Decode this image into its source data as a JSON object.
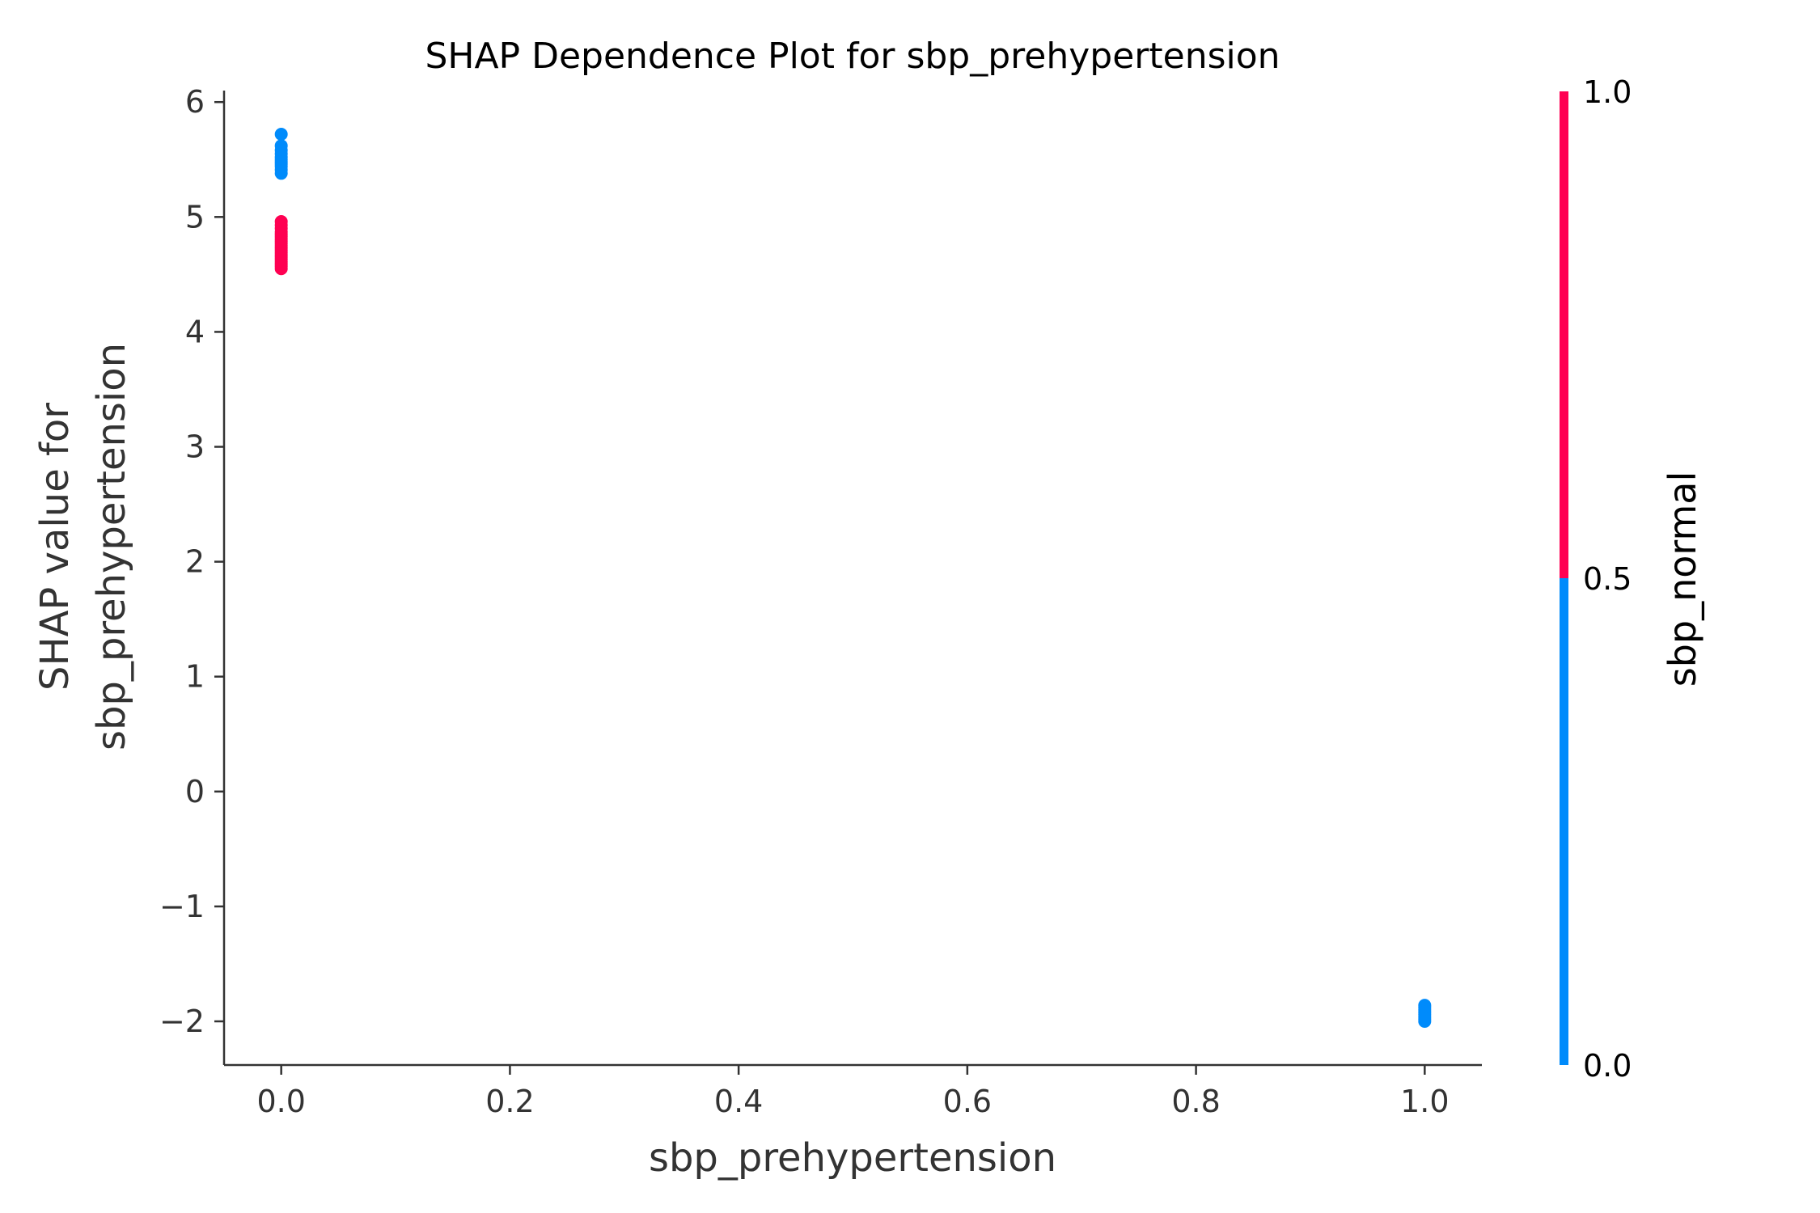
{
  "chart_data": {
    "type": "scatter",
    "title": "SHAP Dependence Plot for sbp_prehypertension",
    "xlabel": "sbp_prehypertension",
    "ylabel_lines": [
      "SHAP value for",
      "sbp_prehypertension"
    ],
    "xlim": [
      -0.05,
      1.05
    ],
    "ylim": [
      -2.38,
      6.1
    ],
    "xticks": [
      0.0,
      0.2,
      0.4,
      0.6,
      0.8,
      1.0
    ],
    "xtick_labels": [
      "0.0",
      "0.2",
      "0.4",
      "0.6",
      "0.8",
      "1.0"
    ],
    "yticks": [
      -2,
      -1,
      0,
      1,
      2,
      3,
      4,
      5,
      6
    ],
    "ytick_labels": [
      "−2",
      "−1",
      "0",
      "1",
      "2",
      "3",
      "4",
      "5",
      "6"
    ],
    "grid": false,
    "colorbar": {
      "label": "sbp_normal",
      "range": [
        0.0,
        1.0
      ],
      "ticks": [
        0.0,
        0.5,
        1.0
      ],
      "tick_labels": [
        "0.0",
        "0.5",
        "1.0"
      ],
      "color_low": "#008bfb",
      "color_high": "#ff0052"
    },
    "series": [
      {
        "color_value": 0,
        "color": "#008bfb",
        "x": [
          0.0,
          0.0,
          0.0,
          0.0,
          0.0,
          0.0,
          0.0,
          0.0,
          0.0,
          0.0,
          0.0,
          1.0,
          1.0,
          1.0,
          1.0,
          1.0,
          1.0,
          1.0,
          1.0
        ],
        "y": [
          5.72,
          5.62,
          5.58,
          5.55,
          5.52,
          5.5,
          5.48,
          5.46,
          5.44,
          5.41,
          5.38,
          -1.86,
          -1.88,
          -1.9,
          -1.92,
          -1.94,
          -1.96,
          -1.98,
          -2.0
        ]
      },
      {
        "color_value": 1,
        "color": "#ff0052",
        "x": [
          0.0,
          0.0,
          0.0,
          0.0,
          0.0,
          0.0,
          0.0,
          0.0,
          0.0,
          0.0,
          0.0,
          0.0,
          0.0,
          0.0,
          0.0,
          0.0,
          0.0,
          0.0,
          0.0,
          0.0
        ],
        "y": [
          4.96,
          4.93,
          4.9,
          4.87,
          4.85,
          4.83,
          4.81,
          4.79,
          4.77,
          4.75,
          4.73,
          4.71,
          4.69,
          4.67,
          4.65,
          4.63,
          4.61,
          4.59,
          4.57,
          4.55
        ]
      }
    ]
  }
}
